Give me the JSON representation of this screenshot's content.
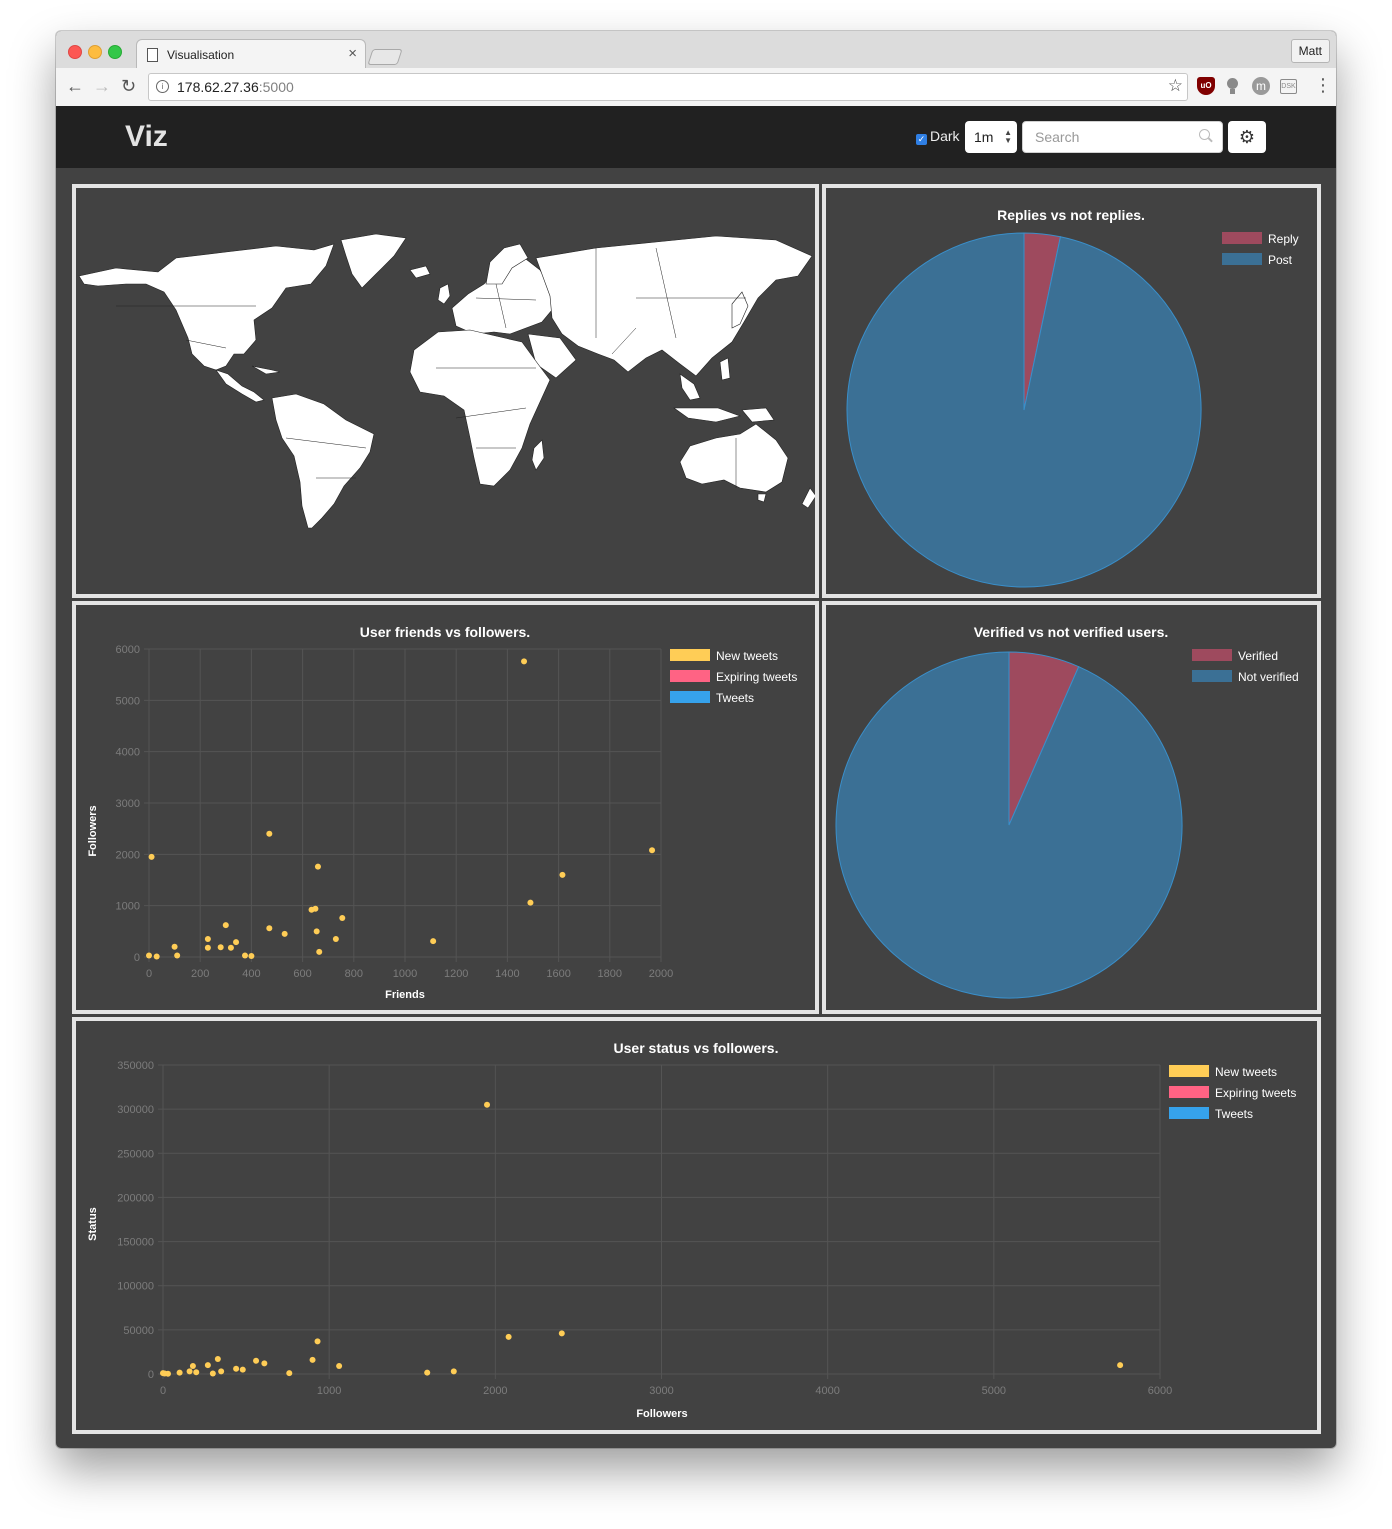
{
  "browser": {
    "tab_title": "Visualisation",
    "tab_close": "×",
    "profile": "Matt",
    "url_host": "178.62.27.36",
    "url_port": ":5000",
    "back": "←",
    "forward": "→",
    "reload": "↻",
    "star": "☆",
    "ext_ub": "uO",
    "ext_m": "m",
    "ext_box": "DSK",
    "menu": "⋮"
  },
  "app": {
    "brand": "Viz",
    "dark_label": "Dark",
    "dark_checked": true,
    "interval_value": "1m",
    "search_placeholder": "Search",
    "settings_icon": "gear-icon",
    "settings_glyph": "⚙"
  },
  "colors": {
    "yellow": "#ffcd56",
    "pink": "#ff6384",
    "blue": "#36a2eb",
    "pie_red": "#9e4a5e",
    "pie_blue": "#3b7095",
    "pie_blue_border": "#3a8fca"
  },
  "charts": {
    "replies": {
      "type": "pie",
      "title": "Replies vs not replies.",
      "labels": [
        "Reply",
        "Post"
      ],
      "values": [
        3.3,
        96.7
      ]
    },
    "verified": {
      "type": "pie",
      "title": "Verified vs not verified users.",
      "labels": [
        "Verified",
        "Not verified"
      ],
      "values": [
        6.6,
        93.4
      ]
    },
    "friends": {
      "type": "scatter",
      "title": "User friends vs followers.",
      "xlabel": "Friends",
      "ylabel": "Followers",
      "xlim": [
        0,
        2000
      ],
      "ylim": [
        0,
        6000
      ],
      "xticks": [
        0,
        200,
        400,
        600,
        800,
        1000,
        1200,
        1400,
        1600,
        1800,
        2000
      ],
      "yticks": [
        0,
        1000,
        2000,
        3000,
        4000,
        5000,
        6000
      ],
      "legend": [
        "New tweets",
        "Expiring tweets",
        "Tweets"
      ],
      "points": [
        [
          0,
          30
        ],
        [
          10,
          1950
        ],
        [
          30,
          10
        ],
        [
          100,
          200
        ],
        [
          110,
          30
        ],
        [
          230,
          350
        ],
        [
          230,
          180
        ],
        [
          280,
          190
        ],
        [
          300,
          620
        ],
        [
          320,
          180
        ],
        [
          340,
          290
        ],
        [
          375,
          30
        ],
        [
          400,
          20
        ],
        [
          470,
          2400
        ],
        [
          470,
          560
        ],
        [
          530,
          450
        ],
        [
          635,
          920
        ],
        [
          650,
          940
        ],
        [
          655,
          500
        ],
        [
          660,
          1760
        ],
        [
          665,
          100
        ],
        [
          730,
          350
        ],
        [
          755,
          760
        ],
        [
          1110,
          310
        ],
        [
          1465,
          5760
        ],
        [
          1490,
          1060
        ],
        [
          1615,
          1600
        ],
        [
          1965,
          2080
        ]
      ]
    },
    "status": {
      "type": "scatter",
      "title": "User status vs followers.",
      "xlabel": "Followers",
      "ylabel": "Status",
      "xlim": [
        0,
        6000
      ],
      "ylim": [
        0,
        350000
      ],
      "xticks": [
        0,
        1000,
        2000,
        3000,
        4000,
        5000,
        6000
      ],
      "yticks": [
        0,
        50000,
        100000,
        150000,
        200000,
        250000,
        300000,
        350000
      ],
      "legend": [
        "New tweets",
        "Expiring tweets",
        "Tweets"
      ],
      "points": [
        [
          0,
          1000
        ],
        [
          10,
          500
        ],
        [
          30,
          300
        ],
        [
          100,
          1500
        ],
        [
          160,
          3000
        ],
        [
          180,
          9000
        ],
        [
          200,
          2000
        ],
        [
          270,
          10000
        ],
        [
          300,
          500
        ],
        [
          330,
          17000
        ],
        [
          350,
          3000
        ],
        [
          440,
          6000
        ],
        [
          480,
          5000
        ],
        [
          560,
          15000
        ],
        [
          610,
          12000
        ],
        [
          760,
          1000
        ],
        [
          900,
          16000
        ],
        [
          930,
          37000
        ],
        [
          1060,
          9000
        ],
        [
          1590,
          1500
        ],
        [
          1750,
          3000
        ],
        [
          1950,
          305000
        ],
        [
          2080,
          42000
        ],
        [
          2400,
          46000
        ],
        [
          5760,
          10000
        ]
      ]
    }
  }
}
